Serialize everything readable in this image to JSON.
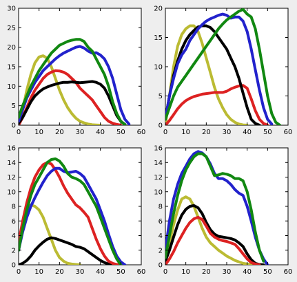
{
  "chart_data": [
    {
      "type": "line",
      "xlim": [
        0,
        60
      ],
      "ylim": [
        0,
        30
      ],
      "xticks": [
        0,
        10,
        20,
        30,
        40,
        50,
        60
      ],
      "yticks": [
        0,
        5,
        10,
        15,
        20,
        25,
        30
      ],
      "grid": false,
      "series": [
        {
          "color": "#bbbb33",
          "x": [
            0,
            2,
            4,
            6,
            8,
            10,
            12,
            14,
            16,
            18,
            20,
            22,
            24,
            26,
            28,
            30,
            32,
            34,
            36,
            38,
            40
          ],
          "values": [
            0,
            4,
            9,
            13,
            16,
            17.5,
            17.8,
            17.2,
            15,
            12,
            9,
            6.5,
            4.5,
            3,
            1.8,
            1,
            0.6,
            0.3,
            0.1,
            0.05,
            0
          ]
        },
        {
          "color": "#dd2222",
          "x": [
            0,
            2,
            4,
            6,
            8,
            10,
            12,
            14,
            16,
            18,
            20,
            22,
            24,
            26,
            28,
            30,
            32,
            34,
            36,
            38,
            40,
            42,
            44,
            46,
            48,
            50
          ],
          "values": [
            0,
            2,
            4.5,
            7,
            9,
            10.5,
            12,
            13,
            13.6,
            14,
            13.9,
            13.6,
            13,
            12,
            11,
            9.5,
            8.5,
            7.5,
            6.5,
            5,
            3.5,
            2,
            1,
            0.5,
            0.2,
            0
          ]
        },
        {
          "color": "#000000",
          "x": [
            0,
            2,
            4,
            6,
            8,
            10,
            12,
            14,
            16,
            18,
            20,
            22,
            24,
            26,
            28,
            30,
            32,
            34,
            36,
            38,
            40,
            42,
            44,
            46,
            48,
            50,
            52
          ],
          "values": [
            0.5,
            2,
            4,
            6,
            7.5,
            8.5,
            9.3,
            9.8,
            10.2,
            10.5,
            10.8,
            11,
            11,
            11.1,
            11,
            10.9,
            11,
            11.1,
            11.2,
            11,
            10.5,
            9.5,
            7.5,
            5,
            2.5,
            1,
            0.2
          ]
        },
        {
          "color": "#2222cc",
          "x": [
            0,
            2,
            4,
            6,
            8,
            10,
            12,
            14,
            16,
            18,
            20,
            22,
            24,
            26,
            28,
            30,
            32,
            34,
            36,
            38,
            40,
            42,
            44,
            46,
            48,
            50,
            52,
            54
          ],
          "values": [
            1,
            4,
            7,
            9,
            11,
            12.5,
            14,
            15,
            16,
            17,
            17.8,
            18.5,
            19,
            19.5,
            20,
            20.2,
            19.8,
            19,
            18.5,
            18.6,
            18,
            17,
            15,
            12,
            8,
            4,
            1.5,
            0.3
          ]
        },
        {
          "color": "#118811",
          "x": [
            0,
            2,
            4,
            6,
            8,
            10,
            12,
            14,
            16,
            18,
            20,
            22,
            24,
            26,
            28,
            30,
            32,
            34,
            36,
            38,
            40,
            42,
            44,
            46,
            48,
            50,
            52
          ],
          "values": [
            2,
            5,
            7.5,
            10,
            12,
            14,
            15.5,
            17,
            18.5,
            19.5,
            20.5,
            21,
            21.5,
            21.8,
            22,
            22,
            21.5,
            20,
            19,
            17,
            15,
            13,
            10,
            6,
            3,
            1,
            0.2
          ]
        }
      ]
    },
    {
      "type": "line",
      "xlim": [
        0,
        60
      ],
      "ylim": [
        0,
        20
      ],
      "xticks": [
        0,
        10,
        20,
        30,
        40,
        50,
        60
      ],
      "yticks": [
        0,
        5,
        10,
        15,
        20
      ],
      "grid": false,
      "series": [
        {
          "color": "#bbbb33",
          "x": [
            0,
            2,
            4,
            6,
            8,
            10,
            12,
            14,
            16,
            18,
            20,
            22,
            24,
            26,
            28,
            30,
            32,
            34,
            36,
            38,
            40
          ],
          "values": [
            0,
            5,
            10,
            13.5,
            15.5,
            16.5,
            17,
            17,
            16,
            14,
            11.5,
            9,
            6.5,
            4.5,
            3,
            1.8,
            1,
            0.5,
            0.2,
            0.05,
            0
          ]
        },
        {
          "color": "#dd2222",
          "x": [
            0,
            2,
            4,
            6,
            8,
            10,
            12,
            14,
            16,
            18,
            20,
            22,
            24,
            26,
            28,
            30,
            32,
            34,
            36,
            38,
            40,
            42,
            44,
            46,
            48,
            50
          ],
          "values": [
            0,
            0.8,
            1.8,
            2.8,
            3.6,
            4.2,
            4.6,
            4.9,
            5.1,
            5.3,
            5.4,
            5.5,
            5.6,
            5.6,
            5.6,
            5.8,
            6.2,
            6.5,
            6.7,
            6.8,
            6.3,
            4.5,
            2.5,
            1,
            0.3,
            0
          ]
        },
        {
          "color": "#000000",
          "x": [
            0,
            2,
            4,
            6,
            8,
            10,
            12,
            14,
            16,
            18,
            20,
            22,
            24,
            26,
            28,
            30,
            32,
            34,
            36,
            38,
            40,
            42,
            44,
            46
          ],
          "values": [
            1,
            5,
            8.5,
            11,
            13,
            14.5,
            15.5,
            16.2,
            16.8,
            17,
            17,
            16.7,
            16,
            15,
            14,
            13,
            11.5,
            10,
            8,
            5.5,
            3,
            1,
            0.3,
            0
          ]
        },
        {
          "color": "#2222cc",
          "x": [
            0,
            2,
            4,
            6,
            8,
            10,
            12,
            14,
            16,
            18,
            20,
            22,
            24,
            26,
            28,
            30,
            32,
            34,
            36,
            38,
            40,
            42,
            44,
            46,
            48,
            50,
            52
          ],
          "values": [
            1,
            5,
            8,
            10.5,
            12,
            13,
            14.5,
            15.5,
            16.5,
            17.2,
            17.8,
            18.2,
            18.5,
            18.8,
            19,
            18.8,
            18.3,
            18.5,
            18.5,
            17.8,
            16,
            13,
            9.5,
            6,
            3,
            1,
            0.2
          ]
        },
        {
          "color": "#118811",
          "x": [
            0,
            2,
            4,
            6,
            8,
            10,
            12,
            14,
            16,
            18,
            20,
            22,
            24,
            26,
            28,
            30,
            32,
            34,
            36,
            38,
            40,
            42,
            44,
            46,
            48,
            50,
            52,
            54,
            56
          ],
          "values": [
            1,
            3,
            5,
            6.5,
            7.5,
            8.5,
            9.5,
            10.5,
            11.5,
            12.5,
            13.5,
            14.5,
            15.5,
            16.5,
            17.3,
            18,
            18.5,
            19,
            19.5,
            19.8,
            19,
            18.5,
            16.5,
            13,
            9,
            5,
            2,
            0.5,
            0
          ]
        }
      ]
    },
    {
      "type": "line",
      "xlim": [
        0,
        60
      ],
      "ylim": [
        0,
        16
      ],
      "xticks": [
        0,
        10,
        20,
        30,
        40,
        50,
        60
      ],
      "yticks": [
        0,
        2,
        4,
        6,
        8,
        10,
        12,
        14,
        16
      ],
      "grid": false,
      "series": [
        {
          "color": "#bbbb33",
          "x": [
            4,
            6,
            8,
            10,
            12,
            14,
            16,
            18,
            20,
            22,
            24,
            26,
            28,
            30
          ],
          "values": [
            7.5,
            8.2,
            8,
            7.5,
            6.5,
            5,
            3.5,
            2,
            1,
            0.5,
            0.2,
            0.1,
            0.05,
            0
          ]
        },
        {
          "color": "#000000",
          "x": [
            0,
            2,
            4,
            6,
            8,
            10,
            12,
            14,
            16,
            18,
            20,
            22,
            24,
            26,
            28,
            30,
            32,
            34,
            36,
            38,
            40,
            42,
            44,
            46,
            48
          ],
          "values": [
            0,
            0.2,
            0.6,
            1.2,
            2,
            2.6,
            3.1,
            3.5,
            3.7,
            3.6,
            3.4,
            3.2,
            3,
            2.8,
            2.5,
            2.4,
            2.2,
            1.8,
            1.4,
            1,
            0.6,
            0.3,
            0.1,
            0.05,
            0
          ]
        },
        {
          "color": "#dd2222",
          "x": [
            0,
            2,
            4,
            6,
            8,
            10,
            12,
            14,
            16,
            18,
            20,
            22,
            24,
            26,
            28,
            30,
            32,
            34,
            36,
            38,
            40,
            42,
            44,
            46,
            48,
            50
          ],
          "values": [
            3,
            6,
            8.5,
            10.5,
            12,
            13,
            13.7,
            14,
            13.8,
            13,
            12,
            10.8,
            9.8,
            9,
            8.2,
            7.8,
            7.2,
            6.5,
            5,
            3.5,
            2.2,
            1.2,
            0.5,
            0.2,
            0.05,
            0
          ]
        },
        {
          "color": "#2222cc",
          "x": [
            0,
            2,
            4,
            6,
            8,
            10,
            12,
            14,
            16,
            18,
            20,
            22,
            24,
            26,
            28,
            30,
            32,
            34,
            36,
            38,
            40,
            42,
            44,
            46,
            48,
            50,
            52
          ],
          "values": [
            2,
            4.5,
            6.5,
            8,
            9.2,
            10.3,
            11.3,
            12.2,
            12.8,
            13.2,
            13.2,
            12.8,
            12.6,
            12.7,
            12.8,
            12.5,
            12,
            11,
            10,
            9,
            7.5,
            6,
            4.2,
            2.5,
            1.2,
            0.4,
            0
          ]
        },
        {
          "color": "#118811",
          "x": [
            0,
            2,
            4,
            6,
            8,
            10,
            12,
            14,
            16,
            18,
            20,
            22,
            24,
            26,
            28,
            30,
            32,
            34,
            36,
            38,
            40,
            42,
            44,
            46,
            48,
            50
          ],
          "values": [
            2,
            5,
            7.5,
            9.5,
            11,
            12,
            13,
            14,
            14.4,
            14.5,
            14.2,
            13.5,
            12.5,
            12,
            11.8,
            11.5,
            11,
            10,
            9,
            8,
            6.5,
            5,
            3.5,
            2,
            0.8,
            0
          ]
        }
      ]
    },
    {
      "type": "line",
      "xlim": [
        0,
        60
      ],
      "ylim": [
        0,
        16
      ],
      "xticks": [
        0,
        10,
        20,
        30,
        40,
        50,
        60
      ],
      "yticks": [
        0,
        2,
        4,
        6,
        8,
        10,
        12,
        14,
        16
      ],
      "grid": false,
      "series": [
        {
          "color": "#bbbb33",
          "x": [
            0,
            2,
            4,
            6,
            8,
            10,
            12,
            14,
            16,
            18,
            20,
            22,
            24,
            26,
            28,
            30,
            32,
            34,
            36,
            38,
            40,
            42
          ],
          "values": [
            1,
            3,
            5.5,
            7.5,
            9,
            9.3,
            9,
            8,
            6.5,
            5,
            3.8,
            3,
            2.5,
            2,
            1.6,
            1.2,
            0.9,
            0.6,
            0.4,
            0.2,
            0.1,
            0
          ]
        },
        {
          "color": "#000000",
          "x": [
            0,
            2,
            4,
            6,
            8,
            10,
            12,
            14,
            16,
            18,
            20,
            22,
            24,
            26,
            28,
            30,
            32,
            34,
            36,
            38,
            40,
            42,
            44,
            46,
            48
          ],
          "values": [
            0.5,
            2,
            3.8,
            5.5,
            6.8,
            7.6,
            8,
            8.1,
            7.8,
            7,
            5.8,
            4.8,
            4.2,
            3.9,
            3.8,
            3.7,
            3.6,
            3.4,
            3,
            2.5,
            1.5,
            0.7,
            0.2,
            0.05,
            0
          ]
        },
        {
          "color": "#dd2222",
          "x": [
            0,
            2,
            4,
            6,
            8,
            10,
            12,
            14,
            16,
            18,
            20,
            22,
            24,
            26,
            28,
            30,
            32,
            34,
            36,
            38,
            40,
            42,
            44,
            46
          ],
          "values": [
            0,
            0.8,
            1.8,
            3,
            4,
            5,
            5.8,
            6.3,
            6.5,
            6.2,
            5.3,
            4.3,
            3.8,
            3.5,
            3.3,
            3.2,
            3,
            2.8,
            2.2,
            1.5,
            0.8,
            0.3,
            0.1,
            0
          ]
        },
        {
          "color": "#2222cc",
          "x": [
            0,
            2,
            4,
            6,
            8,
            10,
            12,
            14,
            16,
            18,
            20,
            22,
            24,
            26,
            28,
            30,
            32,
            34,
            36,
            38,
            40,
            42,
            44,
            46,
            48,
            50
          ],
          "values": [
            2,
            6,
            9,
            11,
            12.5,
            13.5,
            14.5,
            15.2,
            15.5,
            15.3,
            14.8,
            13.8,
            12.5,
            11.8,
            11.8,
            11.5,
            11,
            10.3,
            9.8,
            9.5,
            8,
            6,
            3.8,
            2,
            0.8,
            0
          ]
        },
        {
          "color": "#118811",
          "x": [
            0,
            2,
            4,
            6,
            8,
            10,
            12,
            14,
            16,
            18,
            20,
            22,
            24,
            26,
            28,
            30,
            32,
            34,
            36,
            38,
            40,
            42,
            44,
            46,
            48
          ],
          "values": [
            1,
            4,
            7,
            9.5,
            11.5,
            13,
            14,
            14.8,
            15.2,
            15.2,
            14.8,
            13.5,
            12.2,
            12.3,
            12.5,
            12.4,
            12.2,
            11.8,
            11.8,
            11.5,
            10,
            7.5,
            4.5,
            2,
            0.5
          ]
        }
      ]
    }
  ]
}
